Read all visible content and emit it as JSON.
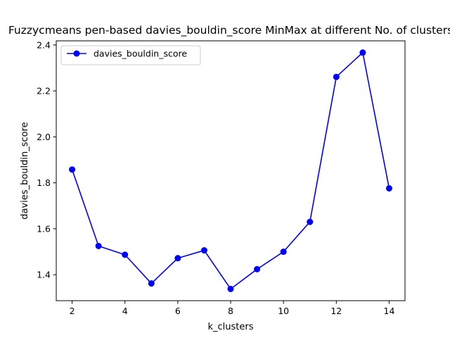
{
  "chart_data": {
    "type": "line",
    "title": "Fuzzycmeans pen-based davies_bouldin_score MinMax at different No. of clusters",
    "xlabel": "k_clusters",
    "ylabel": "davies_bouldin_score",
    "x": [
      2,
      3,
      4,
      5,
      6,
      7,
      8,
      9,
      10,
      11,
      12,
      13,
      14
    ],
    "series": [
      {
        "name": "davies_bouldin_score",
        "color": "#0000ff",
        "marker": "circle",
        "values": [
          1.858,
          1.525,
          1.487,
          1.362,
          1.472,
          1.506,
          1.338,
          1.424,
          1.5,
          1.63,
          2.261,
          2.367,
          1.776
        ]
      }
    ],
    "xlim": [
      1.4,
      14.6
    ],
    "ylim": [
      1.287,
      2.418
    ],
    "xticks": [
      2,
      4,
      6,
      8,
      10,
      12,
      14
    ],
    "yticks": [
      1.4,
      1.6,
      1.8,
      2.0,
      2.2,
      2.4
    ],
    "ytick_labels": [
      "1.4",
      "1.6",
      "1.8",
      "2.0",
      "2.2",
      "2.4"
    ],
    "grid": false,
    "legend_position": "upper-left"
  }
}
